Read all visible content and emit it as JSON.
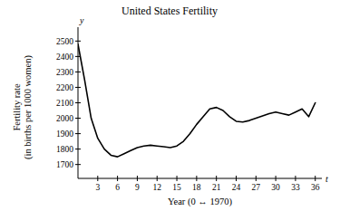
{
  "chart_data": {
    "type": "line",
    "title": "United States Fertility",
    "x_label": "Year (0 ↔ 1970)",
    "y_label": [
      "Fertility rate",
      "(in births per 1000 women)"
    ],
    "x_axis_name": "t",
    "y_axis_name": "y",
    "x": [
      0,
      1,
      2,
      3,
      4,
      5,
      6,
      7,
      8,
      9,
      10,
      11,
      12,
      13,
      14,
      15,
      16,
      17,
      18,
      19,
      20,
      21,
      22,
      23,
      24,
      25,
      26,
      27,
      28,
      29,
      30,
      31,
      32,
      33,
      34,
      35,
      36
    ],
    "series": [
      {
        "name": "Fertility rate",
        "color": "#000000",
        "values": [
          2480,
          2250,
          2000,
          1870,
          1800,
          1760,
          1750,
          1770,
          1790,
          1810,
          1820,
          1825,
          1820,
          1815,
          1810,
          1820,
          1850,
          1900,
          1960,
          2010,
          2060,
          2070,
          2050,
          2010,
          1980,
          1975,
          1985,
          2000,
          2015,
          2030,
          2040,
          2030,
          2020,
          2040,
          2060,
          2010,
          2100
        ]
      }
    ],
    "xlim": [
      0,
      37
    ],
    "ylim": [
      1610,
      2590
    ],
    "xticks": [
      3,
      6,
      9,
      12,
      15,
      18,
      21,
      24,
      27,
      30,
      33,
      36
    ],
    "yticks": [
      1700,
      1800,
      1900,
      2000,
      2100,
      2200,
      2300,
      2400,
      2500
    ],
    "grid": false
  }
}
